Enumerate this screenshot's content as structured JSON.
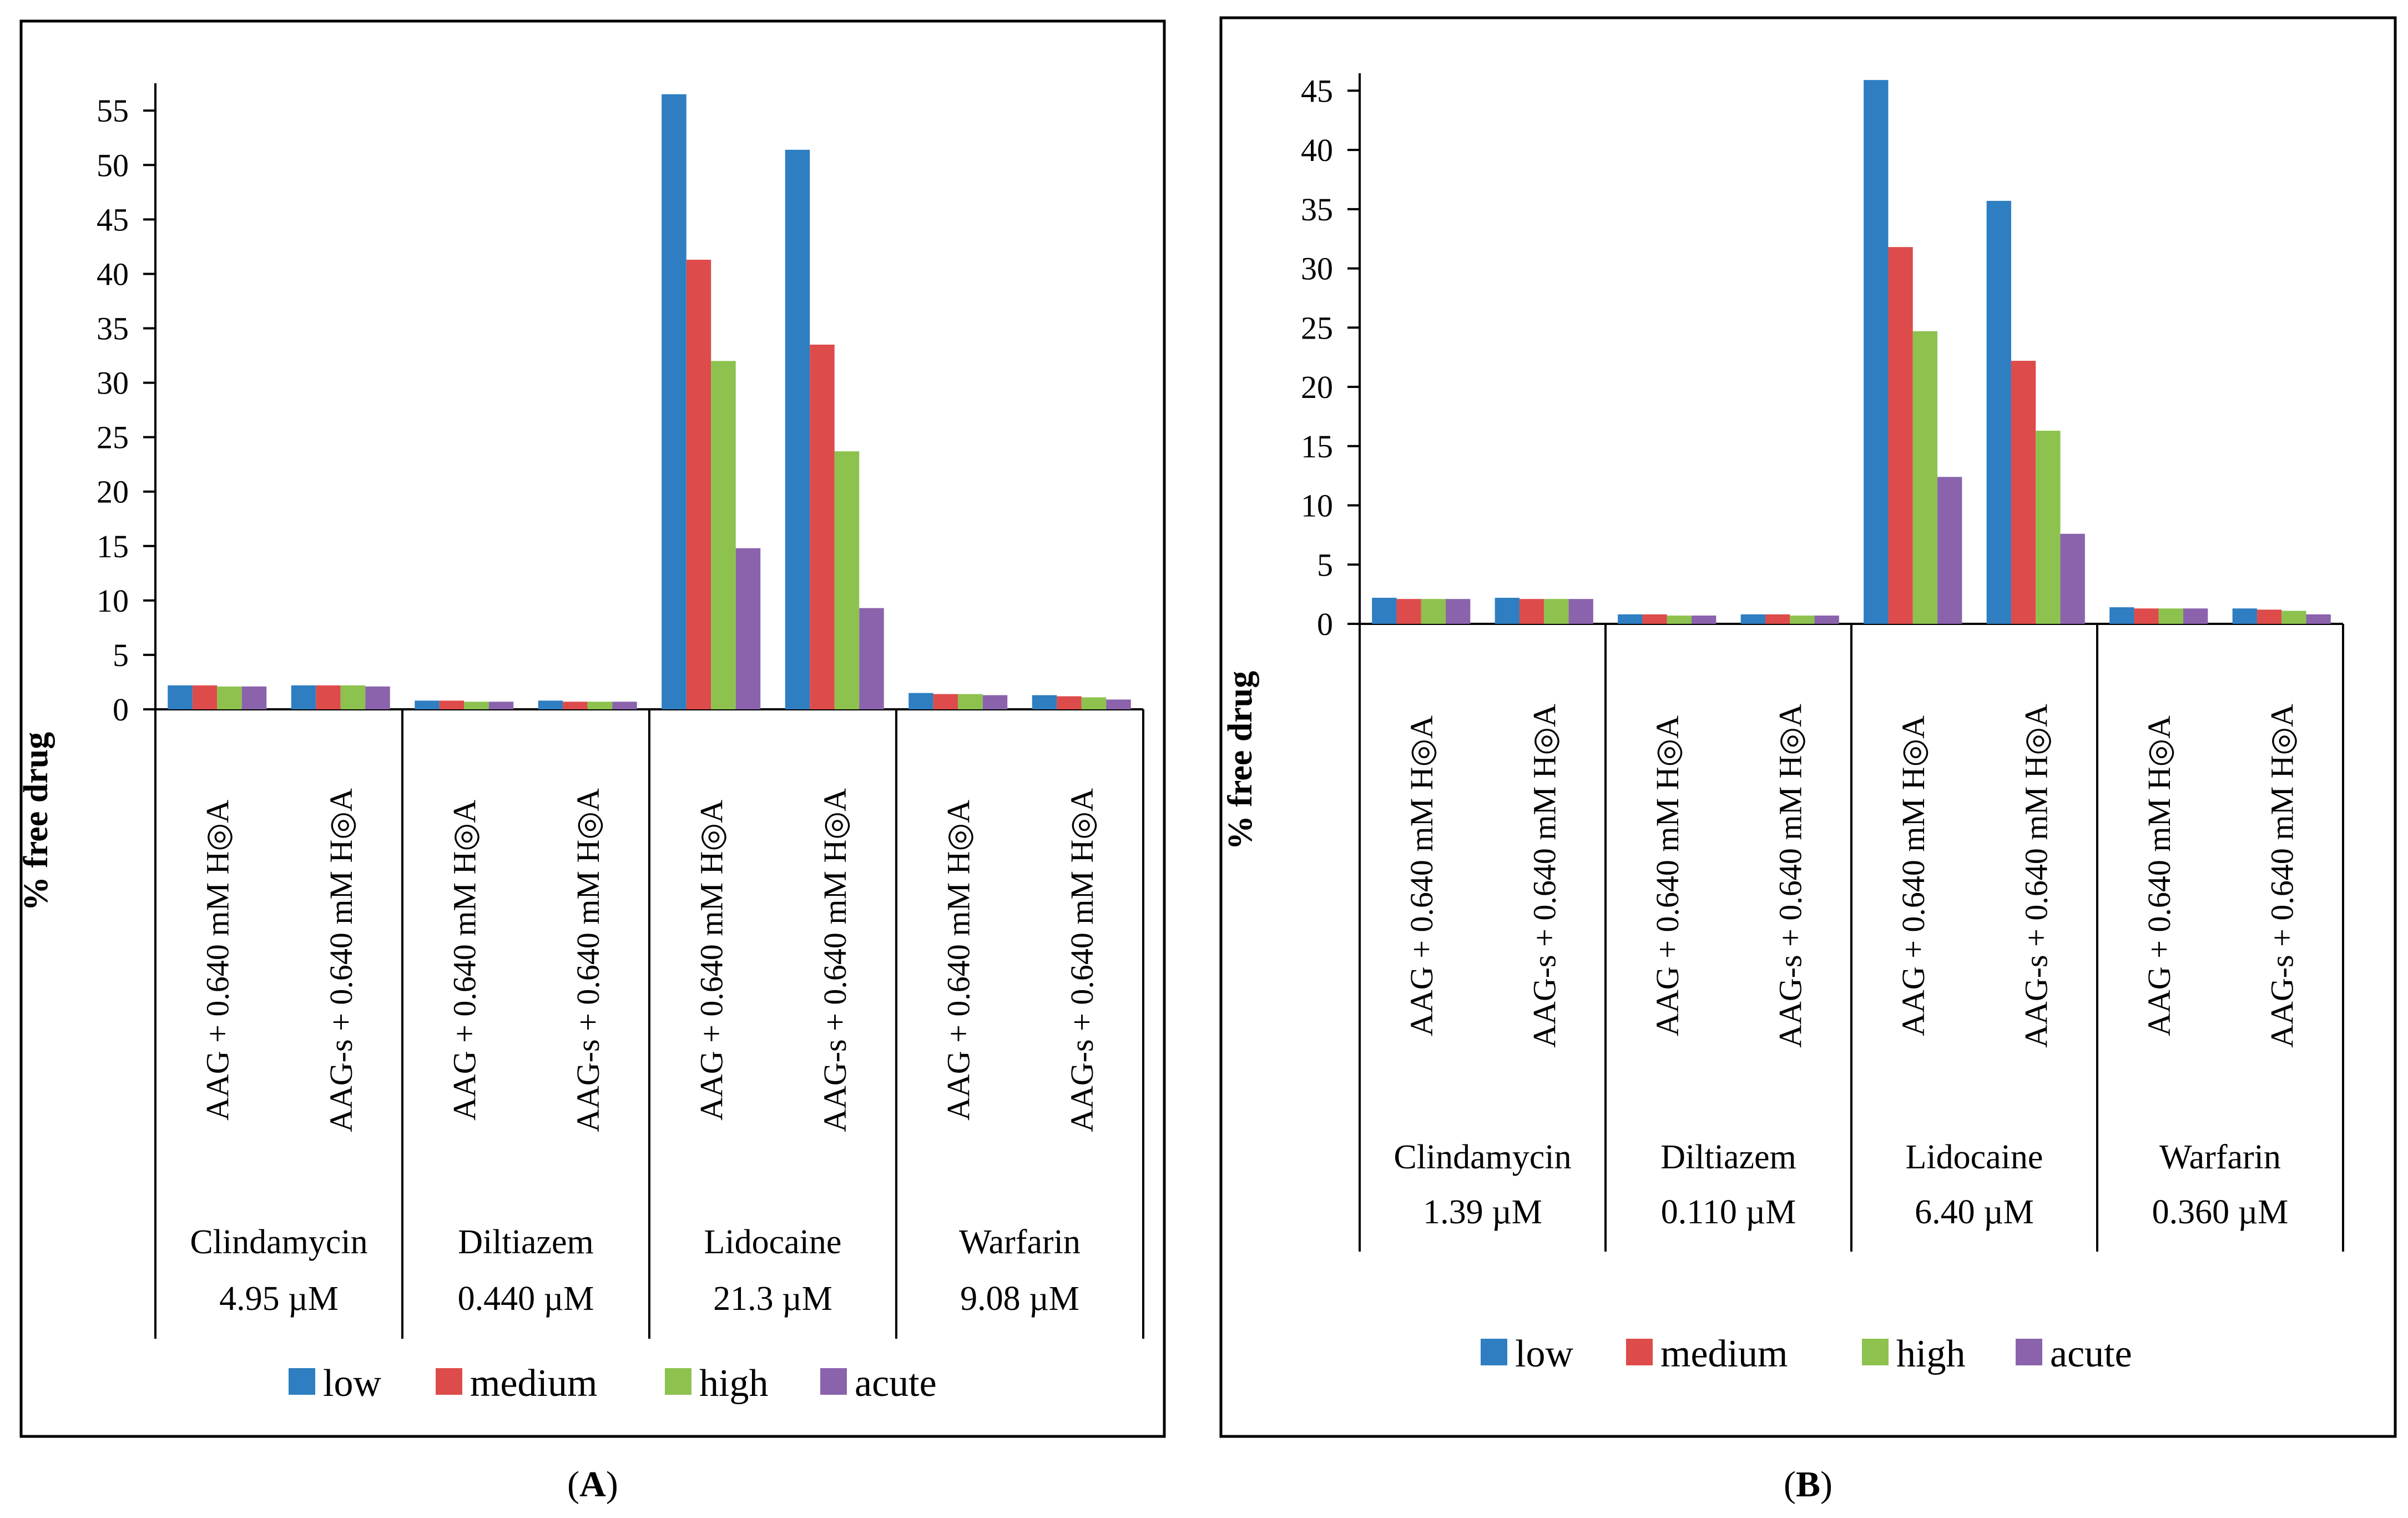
{
  "colors": {
    "low": "#2e7ec1",
    "medium": "#de4b4b",
    "high": "#8dc24f",
    "acute": "#8a63ac"
  },
  "chart_data": [
    {
      "type": "bar",
      "panel": "A",
      "caption": {
        "open": "(",
        "letter": "A",
        "close": ")"
      },
      "ylabel": "% free drug",
      "ylim": [
        0,
        57
      ],
      "yticks": [
        "0",
        "5",
        "10",
        "15",
        "20",
        "25",
        "30",
        "35",
        "40",
        "45",
        "50",
        "55"
      ],
      "ytick_values": [
        0,
        5,
        10,
        15,
        20,
        25,
        30,
        35,
        40,
        45,
        50,
        55
      ],
      "categories": [
        "AAG + 0.640 mM H◎A",
        "AAG-s + 0.640 mM H◎A",
        "AAG + 0.640 mM H◎A",
        "AAG-s + 0.640 mM H◎A",
        "AAG + 0.640 mM H◎A",
        "AAG-s + 0.640 mM H◎A",
        "AAG + 0.640 mM H◎A",
        "AAG-s + 0.640 mM H◎A"
      ],
      "groups": [
        {
          "drug": "Clindamycin",
          "conc": "4.95 µM"
        },
        {
          "drug": "Diltiazem",
          "conc": "0.440 µM"
        },
        {
          "drug": "Lidocaine",
          "conc": "21.3 µM"
        },
        {
          "drug": "Warfarin",
          "conc": "9.08 µM"
        }
      ],
      "series": [
        {
          "name": "low",
          "values": [
            2.2,
            2.2,
            0.8,
            0.8,
            56.5,
            51.4,
            1.5,
            1.3
          ]
        },
        {
          "name": "medium",
          "values": [
            2.2,
            2.2,
            0.8,
            0.7,
            41.3,
            33.5,
            1.4,
            1.2
          ]
        },
        {
          "name": "high",
          "values": [
            2.1,
            2.2,
            0.7,
            0.7,
            32.0,
            23.7,
            1.4,
            1.1
          ]
        },
        {
          "name": "acute",
          "values": [
            2.1,
            2.1,
            0.7,
            0.7,
            14.8,
            9.3,
            1.3,
            0.9
          ]
        }
      ],
      "legend": [
        "low",
        "medium",
        "high",
        "acute"
      ]
    },
    {
      "type": "bar",
      "panel": "B",
      "caption": {
        "open": "(",
        "letter": "B",
        "close": ")"
      },
      "ylabel": "% free drug",
      "ylim": [
        0,
        46
      ],
      "yticks": [
        "0",
        "5",
        "10",
        "15",
        "20",
        "25",
        "30",
        "35",
        "40",
        "45"
      ],
      "ytick_values": [
        0,
        5,
        10,
        15,
        20,
        25,
        30,
        35,
        40,
        45
      ],
      "categories": [
        "AAG + 0.640 mM H◎A",
        "AAG-s + 0.640 mM H◎A",
        "AAG + 0.640 mM H◎A",
        "AAG-s + 0.640 mM H◎A",
        "AAG + 0.640 mM H◎A",
        "AAG-s + 0.640 mM H◎A",
        "AAG + 0.640 mM H◎A",
        "AAG-s + 0.640 mM H◎A"
      ],
      "groups": [
        {
          "drug": "Clindamycin",
          "conc": "1.39 µM"
        },
        {
          "drug": "Diltiazem",
          "conc": "0.110 µM"
        },
        {
          "drug": "Lidocaine",
          "conc": "6.40 µM"
        },
        {
          "drug": "Warfarin",
          "conc": "0.360 µM"
        }
      ],
      "series": [
        {
          "name": "low",
          "values": [
            2.2,
            2.2,
            0.8,
            0.8,
            45.9,
            35.7,
            1.4,
            1.3
          ]
        },
        {
          "name": "medium",
          "values": [
            2.1,
            2.1,
            0.8,
            0.8,
            31.8,
            22.2,
            1.3,
            1.2
          ]
        },
        {
          "name": "high",
          "values": [
            2.1,
            2.1,
            0.7,
            0.7,
            24.7,
            16.3,
            1.3,
            1.1
          ]
        },
        {
          "name": "acute",
          "values": [
            2.1,
            2.1,
            0.7,
            0.7,
            12.4,
            7.6,
            1.3,
            0.8
          ]
        }
      ],
      "legend": [
        "low",
        "medium",
        "high",
        "acute"
      ]
    }
  ]
}
